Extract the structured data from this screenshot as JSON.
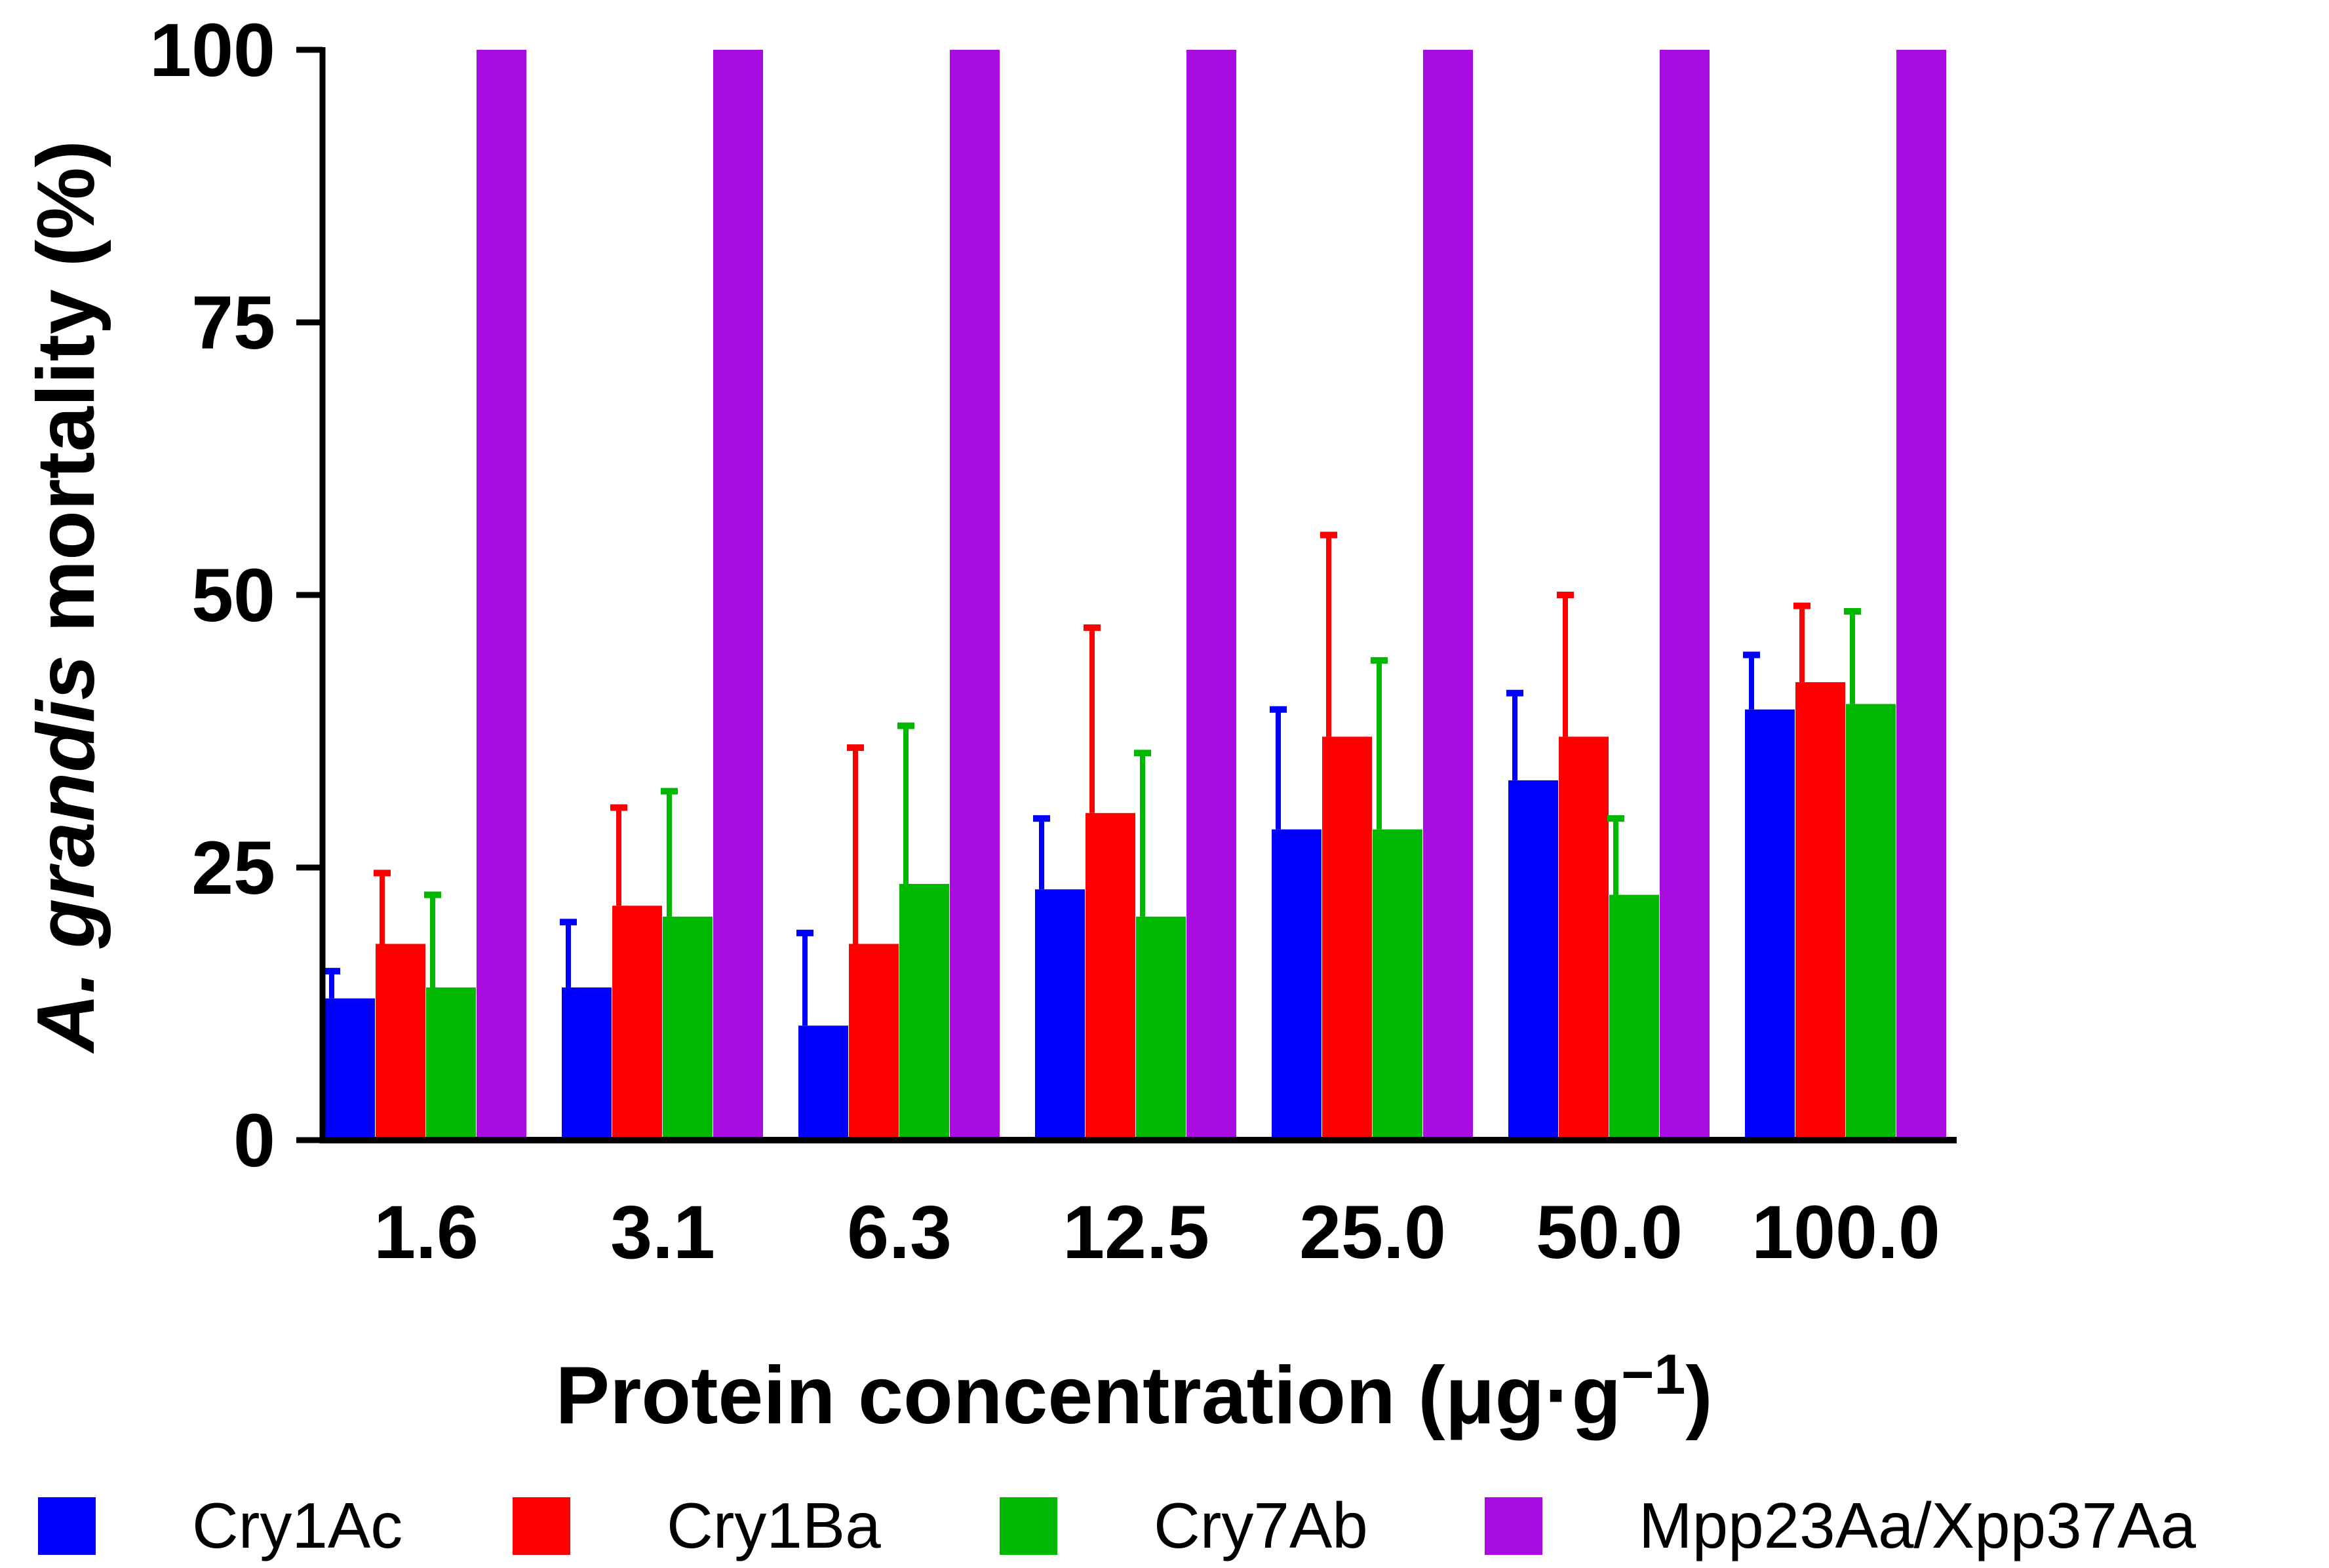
{
  "chart_data": {
    "type": "bar",
    "title": "",
    "xlabel": "Protein concentration (μg·g",
    "xlabel_superscript": "−1",
    "xlabel_close": ")",
    "ylabel_italic": "A. grandis",
    "ylabel_rest": " mortality (%)",
    "ylim": [
      0,
      100
    ],
    "yticks": [
      0,
      25,
      50,
      75,
      100
    ],
    "grid": false,
    "legend_position": "bottom",
    "categories": [
      "1.6",
      "3.1",
      "6.3",
      "12.5",
      "25.0",
      "50.0",
      "100.0"
    ],
    "series": [
      {
        "name": "Cry1Ac",
        "color": "#0000ff",
        "values": [
          13,
          14,
          10.5,
          23,
          28.5,
          33,
          39.5
        ],
        "errors": [
          2.5,
          6,
          8.5,
          6.5,
          11,
          8,
          5
        ]
      },
      {
        "name": "Cry1Ba",
        "color": "#ff0000",
        "values": [
          18,
          21.5,
          18,
          30,
          37,
          37,
          42
        ],
        "errors": [
          6.5,
          9,
          18,
          17,
          18.5,
          13,
          7
        ]
      },
      {
        "name": "Cry7Ab",
        "color": "#00b800",
        "values": [
          14,
          20.5,
          23.5,
          20.5,
          28.5,
          22.5,
          40
        ],
        "errors": [
          8.5,
          11.5,
          14.5,
          15,
          15.5,
          7,
          8.5
        ]
      },
      {
        "name": "Mpp23Aa/Xpp37Aa",
        "color": "#a90cdf",
        "values": [
          100,
          100,
          100,
          100,
          100,
          100,
          100
        ],
        "errors": [
          0,
          0,
          0,
          0,
          0,
          0,
          0
        ]
      }
    ]
  }
}
